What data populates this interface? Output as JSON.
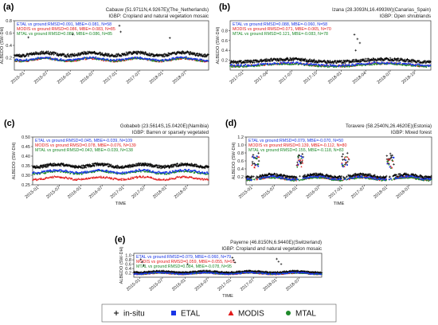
{
  "chart_data": [
    {
      "type": "scatter",
      "panel_label": "(a)",
      "title": "Cabauw (51.9711N,4.9267E)(The_Netherlands)",
      "subtitle": "IGBP: Cropland and natural vegetation mosaic",
      "xlabel": "",
      "ylabel": "ALBEDO (SW-DH)",
      "xlim": [
        "2014-10-15",
        "2018-12-31"
      ],
      "ylim": [
        0,
        0.8
      ],
      "x_ticks": [
        "2015-01",
        "2015-07",
        "2016-01",
        "2016-07",
        "2017-01",
        "2017-07",
        "2018-01",
        "2018-07"
      ],
      "y_ticks": [
        "0.2",
        "0.4",
        "0.6",
        "0.8"
      ],
      "stats": [
        {
          "text": "ETAL vs ground:RMSD=0.091, MBE=-0.081, N=58",
          "color": "#1a36e6"
        },
        {
          "text": "MODIS vs ground:RMSD=0.086, MBE=-0.083, N=85",
          "color": "#e21b1b"
        },
        {
          "text": "MTAL vs ground:RMSD=0.089, MBE=-0.086, N=85",
          "color": "#1e8a2a"
        }
      ],
      "series_levels": {
        "in-situ": 0.26,
        "ETAL": 0.18,
        "MODIS": 0.17,
        "MTAL": 0.17
      },
      "spikes": [
        [
          "2015-02-05",
          0.53
        ],
        [
          "2016-01-20",
          0.58
        ],
        [
          "2017-01-25",
          0.72
        ],
        [
          "2017-02-05",
          0.62
        ],
        [
          "2018-02-28",
          0.52
        ]
      ]
    },
    {
      "type": "scatter",
      "panel_label": "(b)",
      "title": "Izana (28.3093N,16.4993W)(Canarias_Spain)",
      "subtitle": "IGBP: Open shrublands",
      "xlabel": "",
      "ylabel": "ALBEDO (SW-DH)",
      "xlim": [
        "2016-11-15",
        "2018-11-30"
      ],
      "ylim": [
        0,
        1.0
      ],
      "x_ticks": [
        "2017-01",
        "2017-04",
        "2017-07",
        "2017-10",
        "2018-01",
        "2018-04",
        "2018-07",
        "2018-10"
      ],
      "y_ticks": [
        "0.2",
        "0.4",
        "0.6",
        "0.8"
      ],
      "stats": [
        {
          "text": "ETAL vs ground:RMSD=0.088, MBE=-0.060, N=58",
          "color": "#1a36e6"
        },
        {
          "text": "MODIS vs ground:RMSD=0.071, MBE=-0.065, N=70",
          "color": "#e21b1b"
        },
        {
          "text": "MTAL vs ground:RMSD=0.121, MBE=-0.083, N=78",
          "color": "#1e8a2a"
        }
      ],
      "series_levels": {
        "in-situ": 0.19,
        "ETAL": 0.12,
        "MODIS": 0.11,
        "MTAL": 0.1
      },
      "spikes": [
        [
          "2018-02-20",
          0.72
        ],
        [
          "2018-03-01",
          0.63
        ],
        [
          "2018-03-10",
          0.55
        ],
        [
          "2018-02-25",
          0.4
        ]
      ]
    },
    {
      "type": "scatter",
      "panel_label": "(c)",
      "title": "Gobabeb (23.5614S,15.0420E)(Namibia)",
      "subtitle": "IGBP: Barren or sparsely vegetated",
      "xlabel": "TIME",
      "ylabel": "ALBEDO (SW-DH)",
      "xlim": [
        "2014-11-15",
        "2018-12-31"
      ],
      "ylim": [
        0.25,
        0.5
      ],
      "x_ticks": [
        "2015-01",
        "2015-07",
        "2016-01",
        "2016-07",
        "2017-01",
        "2017-07",
        "2018-01",
        "2018-07"
      ],
      "y_ticks": [
        "0.25",
        "0.30",
        "0.35",
        "0.40",
        "0.45",
        "0.50"
      ],
      "stats": [
        {
          "text": "ETAL vs ground:RMSD=0.045, MBE=-0.039, N=109",
          "color": "#1a36e6"
        },
        {
          "text": "MODIS vs ground:RMSD=0.078, MBE=-0.076, N=139",
          "color": "#e21b1b"
        },
        {
          "text": "MTAL vs ground:RMSD=0.043, MBE=-0.039, N=138",
          "color": "#1e8a2a"
        }
      ],
      "series_levels": {
        "in-situ": 0.35,
        "ETAL": 0.32,
        "MODIS": 0.285,
        "MTAL": 0.315
      },
      "spikes": []
    },
    {
      "type": "scatter",
      "panel_label": "(d)",
      "title": "Toravere (58.2540N,26.4620E)(Estonia)",
      "subtitle": "IGBP: Mixed forest",
      "xlabel": "TIME",
      "ylabel": "ALBEDO (SW-DH)",
      "xlim": [
        "2014-11-15",
        "2018-12-31"
      ],
      "ylim": [
        0,
        1.2
      ],
      "x_ticks": [
        "2015-01",
        "2015-07",
        "2016-01",
        "2016-07",
        "2017-01",
        "2017-07",
        "2018-01",
        "2018-07"
      ],
      "y_ticks": [
        "0.2",
        "0.4",
        "0.6",
        "0.8",
        "1.0",
        "1.2"
      ],
      "stats": [
        {
          "text": "ETAL vs ground:RMSD=0.079, MBE=-0.070, N=50",
          "color": "#1a36e6"
        },
        {
          "text": "MODIS vs ground:RMSD=0.139, MBE=-0.112, N=80",
          "color": "#e21b1b"
        },
        {
          "text": "MTAL vs ground:RMSD=0.155, MBE=-0.118, N=83",
          "color": "#1e8a2a"
        }
      ],
      "series_levels": {
        "in-situ": 0.22,
        "ETAL": 0.17,
        "MODIS": 0.16,
        "MTAL": 0.15
      },
      "winter_peak": 0.8
    },
    {
      "type": "scatter",
      "panel_label": "(e)",
      "title": "Payerne (46.8150N,6.9440E)(Switzerland)",
      "subtitle": "IGBP: Cropland and natural vegetation mosaic",
      "xlabel": "TIME",
      "ylabel": "ALBEDO (SW-DH)",
      "xlim": [
        "2014-11-15",
        "2018-12-31"
      ],
      "ylim": [
        0,
        1.1
      ],
      "x_ticks": [
        "2015-01",
        "2015-07",
        "2016-01",
        "2016-07",
        "2017-01",
        "2017-07",
        "2018-01",
        "2018-07"
      ],
      "y_ticks": [
        "0.2",
        "0.4",
        "0.6",
        "0.8",
        "1.0"
      ],
      "stats": [
        {
          "text": "ETAL vs ground:RMSD=0.079, MBE=-0.060, N=79",
          "color": "#1a36e6"
        },
        {
          "text": "MODIS vs ground:RMSD=0.059, MBE=-0.055, N=91",
          "color": "#e21b1b"
        },
        {
          "text": "MTAL vs ground:RMSD=0.084, MBE=-0.078, N=95",
          "color": "#1e8a2a"
        }
      ],
      "series_levels": {
        "in-situ": 0.24,
        "ETAL": 0.18,
        "MODIS": 0.17,
        "MTAL": 0.17
      },
      "spikes": [
        [
          "2015-01-10",
          0.82
        ],
        [
          "2015-01-20",
          0.7
        ],
        [
          "2015-02-05",
          0.55
        ],
        [
          "2016-01-20",
          0.6
        ],
        [
          "2017-01-15",
          0.9
        ],
        [
          "2017-01-25",
          0.78
        ],
        [
          "2017-02-05",
          0.68
        ],
        [
          "2018-01-05",
          0.84
        ],
        [
          "2018-01-20",
          0.72
        ],
        [
          "2018-02-10",
          0.6
        ]
      ]
    }
  ],
  "legend": [
    {
      "name": "in-situ",
      "marker": "+",
      "color": "#000000"
    },
    {
      "name": "ETAL",
      "marker": "square",
      "color": "#1a36e6"
    },
    {
      "name": "MODIS",
      "marker": "triangle",
      "color": "#e21b1b"
    },
    {
      "name": "MTAL",
      "marker": "circle",
      "color": "#1e8a2a"
    }
  ]
}
